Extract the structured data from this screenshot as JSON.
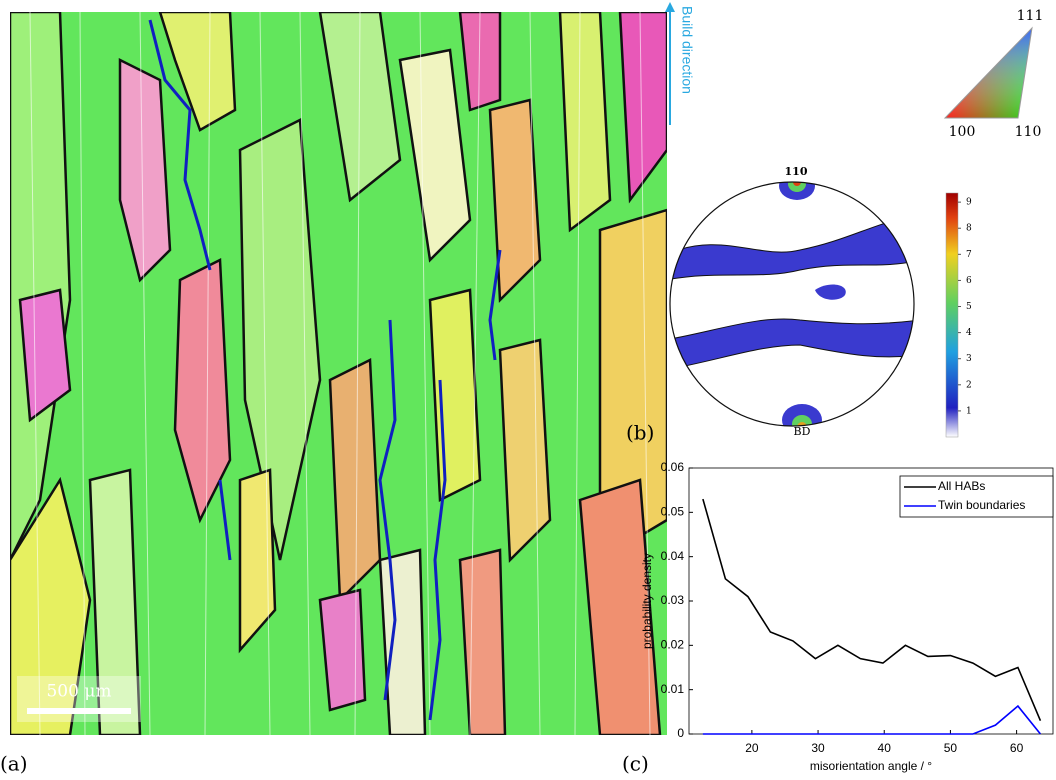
{
  "panels": {
    "a": "(a)",
    "b": "(b)",
    "c": "(c)"
  },
  "ebsd_map": {
    "scale_bar": "500 μm"
  },
  "build_direction": "Build direction",
  "ipf_legend": {
    "top": "111",
    "left": "100",
    "right": "110"
  },
  "pole_figure": {
    "title": "110",
    "center_label": "BD",
    "colorbar": {
      "lim": [
        0,
        9.35
      ],
      "ticks": [
        1,
        2,
        3,
        4,
        5,
        6,
        7,
        8,
        9
      ]
    }
  },
  "chart_data": {
    "type": "line",
    "xlabel": "misorientation angle / °",
    "ylabel": "probability density",
    "x": [
      12.6,
      16.0,
      19.4,
      22.8,
      26.2,
      29.6,
      33.0,
      36.4,
      39.8,
      43.2,
      46.6,
      50.0,
      53.4,
      56.8,
      60.2,
      63.6
    ],
    "series": [
      {
        "name": "All HABs",
        "color": "#000000",
        "values": [
          0.053,
          0.035,
          0.031,
          0.023,
          0.021,
          0.017,
          0.02,
          0.017,
          0.016,
          0.02,
          0.0175,
          0.0177,
          0.016,
          0.013,
          0.015,
          0.003
        ]
      },
      {
        "name": "Twin boundaries",
        "color": "#0000ff",
        "values": [
          0,
          0,
          0,
          0,
          0,
          0,
          0,
          0,
          0,
          0,
          0,
          0,
          0,
          0.002,
          0.0063,
          0
        ]
      }
    ],
    "xlim": [
      10.5,
      65.5
    ],
    "ylim": [
      0,
      0.06
    ],
    "xticks": [
      20,
      30,
      40,
      50,
      60
    ],
    "yticks": [
      0,
      0.01,
      0.02,
      0.03,
      0.04,
      0.05,
      0.06
    ],
    "legend": "upper right"
  }
}
